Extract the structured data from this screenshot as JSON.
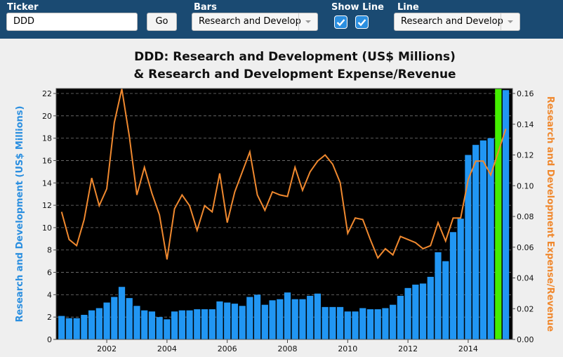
{
  "controls": {
    "ticker": {
      "label": "Ticker",
      "value": "DDD",
      "button": "Go"
    },
    "bars": {
      "label": "Bars",
      "selected": "Research and Develop"
    },
    "show_line": {
      "label": "Show Line",
      "checked": [
        true,
        true
      ]
    },
    "line": {
      "label": "Line",
      "selected": "Research and Develop"
    }
  },
  "chart_data": {
    "type": "bar",
    "title": [
      "DDD: Research and Development (US$ Millions)",
      "& Research and Development Expense/Revenue"
    ],
    "ylabel": "Research and Development (US$ Millions)",
    "y2label": "Research and Development Expense/Revenue",
    "x": [
      2000.5,
      2000.75,
      2001,
      2001.25,
      2001.5,
      2001.75,
      2002,
      2002.25,
      2002.5,
      2002.75,
      2003,
      2003.25,
      2003.5,
      2003.75,
      2004,
      2004.25,
      2004.5,
      2004.75,
      2005,
      2005.25,
      2005.5,
      2005.75,
      2006,
      2006.25,
      2006.5,
      2006.75,
      2007,
      2007.25,
      2007.5,
      2007.75,
      2008,
      2008.25,
      2008.5,
      2008.75,
      2009,
      2009.25,
      2009.5,
      2009.75,
      2010,
      2010.25,
      2010.5,
      2010.75,
      2011,
      2011.25,
      2011.5,
      2011.75,
      2012,
      2012.25,
      2012.5,
      2012.75,
      2013,
      2013.25,
      2013.5,
      2013.75,
      2014,
      2014.25,
      2014.5,
      2014.75,
      2015,
      2015.25
    ],
    "series": [
      {
        "type": "bar",
        "color": "#2196f3",
        "highlight": {
          "index": 58,
          "color": "#44ee00"
        },
        "values": [
          2.1,
          1.9,
          1.9,
          2.2,
          2.6,
          2.8,
          3.3,
          3.8,
          4.7,
          3.7,
          3.0,
          2.6,
          2.5,
          2.0,
          1.8,
          2.5,
          2.6,
          2.6,
          2.7,
          2.7,
          2.7,
          3.4,
          3.3,
          3.2,
          3.0,
          3.8,
          4.0,
          3.1,
          3.5,
          3.6,
          4.2,
          3.6,
          3.6,
          3.9,
          4.1,
          2.9,
          2.9,
          2.9,
          2.5,
          2.5,
          2.8,
          2.7,
          2.7,
          2.8,
          3.1,
          3.9,
          4.6,
          4.9,
          5.0,
          5.6,
          7.8,
          7.0,
          9.6,
          10.8,
          16.5,
          17.4,
          17.8,
          18.0,
          22.4,
          22.3
        ]
      },
      {
        "type": "line",
        "axis": "y2",
        "color": "#f0892f",
        "values": [
          0.083,
          0.065,
          0.061,
          0.078,
          0.105,
          0.087,
          0.098,
          0.141,
          0.163,
          0.132,
          0.094,
          0.112,
          0.095,
          0.081,
          0.052,
          0.085,
          0.094,
          0.087,
          0.071,
          0.087,
          0.083,
          0.108,
          0.076,
          0.096,
          0.109,
          0.122,
          0.094,
          0.084,
          0.096,
          0.094,
          0.093,
          0.112,
          0.097,
          0.109,
          0.116,
          0.12,
          0.114,
          0.102,
          0.069,
          0.079,
          0.078,
          0.065,
          0.053,
          0.059,
          0.055,
          0.067,
          0.065,
          0.063,
          0.059,
          0.061,
          0.076,
          0.064,
          0.079,
          0.079,
          0.104,
          0.116,
          0.116,
          0.107,
          0.122,
          0.137
        ]
      }
    ],
    "xlim": [
      2000.32,
      2015.47
    ],
    "xticks": [
      2002,
      2004,
      2006,
      2008,
      2010,
      2012,
      2014
    ],
    "ylim": [
      0,
      22.44
    ],
    "yticks": [
      0,
      2,
      4,
      6,
      8,
      10,
      12,
      14,
      16,
      18,
      20,
      22
    ],
    "y2lim": [
      0,
      0.1632
    ],
    "y2ticks": [
      {
        "value": 0,
        "label": "0.00"
      },
      {
        "value": 0.02,
        "label": "0.02"
      },
      {
        "value": 0.04,
        "label": "0.04"
      },
      {
        "value": 0.06,
        "label": "0.06"
      },
      {
        "value": 0.08,
        "label": "0.08"
      },
      {
        "value": 0.1,
        "label": "0.10"
      },
      {
        "value": 0.12,
        "label": "0.12"
      },
      {
        "value": 0.14,
        "label": "0.14"
      },
      {
        "value": 0.16,
        "label": "0.16"
      }
    ],
    "grid": true,
    "ylabel_color": "#2b8fe0",
    "y2label_color": "#f0892f"
  }
}
